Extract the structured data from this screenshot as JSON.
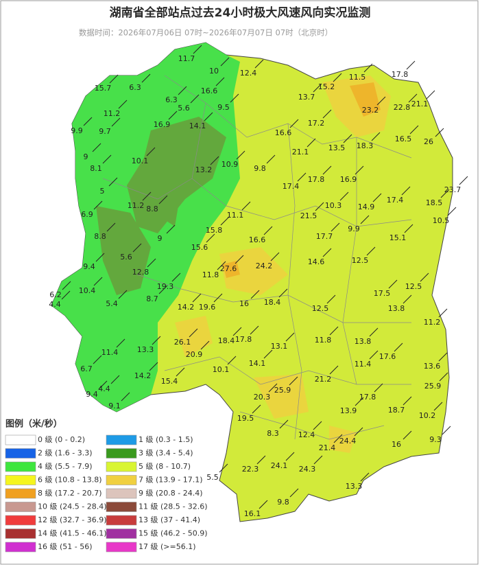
{
  "title": "湖南省全部站点过去24小时极大风速风向实况监测",
  "subtitle": "数据时间：2026年07月06日 07时~2026年07月07日 07时（北京时）",
  "stations": [
    11.7,
    10,
    12.4,
    15.2,
    11.5,
    17.8,
    15.7,
    6.3,
    16.6,
    13.7,
    23.2,
    22.8,
    21.1,
    6.3,
    11.2,
    5.6,
    9.5,
    17.2,
    16.9,
    14.1,
    9.9,
    9.7,
    16.6,
    16.5,
    26,
    13.5,
    18.3,
    21.1,
    9,
    10.1,
    8.1,
    10.9,
    9.8,
    13.2,
    17.4,
    17.8,
    16.9,
    23.7,
    5,
    11.2,
    8.8,
    10.3,
    14.9,
    17.4,
    18.5,
    6.9,
    11.1,
    21.5,
    10.5,
    9,
    15.8,
    9.9,
    17.7,
    15.1,
    8.8,
    16.6,
    15.6,
    14.6,
    12.5,
    5.6,
    9.4,
    27.6,
    24.2,
    12.8,
    11.8,
    19.3,
    10.4,
    6.2,
    17.5,
    12.5,
    8.7,
    4.4,
    16,
    18.4,
    5.4,
    14.2,
    19.6,
    12.5,
    13.8,
    11.2,
    26.1,
    18.4,
    17.8,
    13.1,
    11.8,
    13.8,
    17.6,
    11.4,
    13.3,
    20.9,
    14.1,
    11.4,
    13.6,
    6.7,
    10.1,
    14.2,
    15.4,
    21.2,
    25.9,
    20.3,
    17.8,
    25.9,
    9.4,
    4.4,
    9.1,
    18.7,
    13.9,
    19.5,
    10.2,
    12.4,
    8.3,
    24.4,
    9.3,
    16,
    21.4,
    24.1,
    22.3,
    24.3,
    5.5,
    9.8,
    13.3,
    16.1
  ],
  "legend": {
    "title": "图例（米/秒）",
    "items": [
      {
        "label": "0 级 (0 - 0.2)",
        "color": "#ffffff"
      },
      {
        "label": "1 级 (0.3 - 1.5)",
        "color": "#1e9be6"
      },
      {
        "label": "2 级 (1.6 - 3.3)",
        "color": "#1763e6"
      },
      {
        "label": "3 级 (3.4 - 5.4)",
        "color": "#3a9a1e"
      },
      {
        "label": "4 级 (5.5 - 7.9)",
        "color": "#3ee63e"
      },
      {
        "label": "5 级 (8 - 10.7)",
        "color": "#d9f532"
      },
      {
        "label": "6 级 (10.8 - 13.8)",
        "color": "#f5f51e"
      },
      {
        "label": "7 级 (13.9 - 17.1)",
        "color": "#f0d040"
      },
      {
        "label": "8 级 (17.2 - 20.7)",
        "color": "#f0a020"
      },
      {
        "label": "9 级 (20.8 - 24.4)",
        "color": "#dcc4bc"
      },
      {
        "label": "10 级 (24.5 - 28.4)",
        "color": "#c89890"
      },
      {
        "label": "11 级 (28.5 - 32.6)",
        "color": "#8b4a3a"
      },
      {
        "label": "12 级 (32.7 - 36.9)",
        "color": "#f03c3c"
      },
      {
        "label": "13 级 (37 - 41.4)",
        "color": "#c83c3c"
      },
      {
        "label": "14 级 (41.5 - 46.1)",
        "color": "#a83030"
      },
      {
        "label": "15 级 (46.2 - 50.9)",
        "color": "#a030a0"
      },
      {
        "label": "16 级 (51 - 56)",
        "color": "#d030d0"
      },
      {
        "label": "17 级 (>=56.1)",
        "color": "#e838c8"
      }
    ]
  }
}
